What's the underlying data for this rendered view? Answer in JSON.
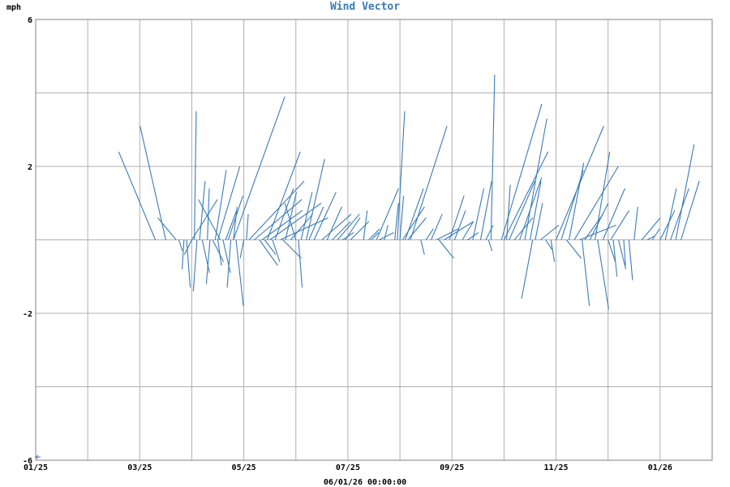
{
  "chart_data": {
    "type": "line",
    "title": "Wind Vector",
    "ylabel": "mph",
    "footer": "06/01/26 00:00:00",
    "ylim": [
      -6,
      6
    ],
    "y_ticks": [
      {
        "value": 6,
        "label": "6"
      },
      {
        "value": 2,
        "label": "2"
      },
      {
        "value": -2,
        "label": "-2"
      },
      {
        "value": -6,
        "label": "-6"
      }
    ],
    "x_range": [
      0,
      13.0
    ],
    "x_ticks": [
      {
        "value": 0,
        "label": "01/25"
      },
      {
        "value": 2,
        "label": "03/25"
      },
      {
        "value": 4,
        "label": "05/25"
      },
      {
        "value": 6,
        "label": "07/25"
      },
      {
        "value": 8,
        "label": "09/25"
      },
      {
        "value": 10,
        "label": "11/25"
      },
      {
        "value": 12,
        "label": "01/26"
      }
    ],
    "x_grid": [
      0,
      1,
      2,
      3,
      4,
      5,
      6,
      7,
      8,
      9,
      10,
      11,
      12,
      13
    ],
    "y_grid": [
      -6,
      -4,
      -2,
      0,
      2,
      4,
      6
    ],
    "series_color": "#3a7bb8",
    "grid_color": "#b0b0b0",
    "vectors": [
      {
        "x": 2.3,
        "u": -1.0,
        "v": 2.4
      },
      {
        "x": 2.5,
        "u": -0.7,
        "v": 3.1
      },
      {
        "x": 2.7,
        "u": -0.5,
        "v": 0.6
      },
      {
        "x": 2.75,
        "u": 0.1,
        "v": -0.3
      },
      {
        "x": 2.85,
        "u": -0.05,
        "v": -0.8
      },
      {
        "x": 2.9,
        "u": 0.1,
        "v": -1.3
      },
      {
        "x": 3.0,
        "u": -0.2,
        "v": -0.4
      },
      {
        "x": 3.0,
        "u": 0.7,
        "v": 1.1
      },
      {
        "x": 3.05,
        "u": 0.05,
        "v": 3.5
      },
      {
        "x": 3.1,
        "u": -0.1,
        "v": -1.4
      },
      {
        "x": 3.15,
        "u": 0.15,
        "v": 1.6
      },
      {
        "x": 3.2,
        "u": 0.2,
        "v": -0.9
      },
      {
        "x": 3.3,
        "u": 0.05,
        "v": 1.4
      },
      {
        "x": 3.35,
        "u": -0.1,
        "v": -1.2
      },
      {
        "x": 3.4,
        "u": 0.3,
        "v": -0.6
      },
      {
        "x": 3.45,
        "u": 0.3,
        "v": 1.9
      },
      {
        "x": 3.5,
        "u": 0.1,
        "v": -0.7
      },
      {
        "x": 3.5,
        "u": 0.6,
        "v": 2.0
      },
      {
        "x": 3.55,
        "u": -0.6,
        "v": 1.1
      },
      {
        "x": 3.6,
        "u": 0.2,
        "v": -0.9
      },
      {
        "x": 3.65,
        "u": 0.3,
        "v": 0.8
      },
      {
        "x": 3.7,
        "u": 0.4,
        "v": 1.2
      },
      {
        "x": 3.75,
        "u": -0.1,
        "v": -1.3
      },
      {
        "x": 3.8,
        "u": 0.1,
        "v": 0.9
      },
      {
        "x": 3.85,
        "u": 0.2,
        "v": -1.8
      },
      {
        "x": 3.8,
        "u": 1.4,
        "v": 3.9
      },
      {
        "x": 4.0,
        "u": -0.1,
        "v": -0.5
      },
      {
        "x": 4.05,
        "u": 0.05,
        "v": 0.7
      },
      {
        "x": 4.1,
        "u": 1.5,
        "v": 1.6
      },
      {
        "x": 4.2,
        "u": 1.3,
        "v": 1.1
      },
      {
        "x": 4.3,
        "u": 0.5,
        "v": -0.7
      },
      {
        "x": 4.35,
        "u": 1.1,
        "v": 0.8
      },
      {
        "x": 4.4,
        "u": 0.3,
        "v": -0.4
      },
      {
        "x": 4.45,
        "u": 0.9,
        "v": 2.4
      },
      {
        "x": 4.5,
        "u": 1.4,
        "v": 1.0
      },
      {
        "x": 4.55,
        "u": 0.2,
        "v": -0.6
      },
      {
        "x": 4.6,
        "u": 0.5,
        "v": 1.4
      },
      {
        "x": 4.7,
        "u": 1.3,
        "v": 0.6
      },
      {
        "x": 4.75,
        "u": 0.5,
        "v": -0.5
      },
      {
        "x": 4.8,
        "u": 0.3,
        "v": 1.3
      },
      {
        "x": 4.9,
        "u": 0.6,
        "v": 0.7
      },
      {
        "x": 5.0,
        "u": -0.3,
        "v": 1.0
      },
      {
        "x": 5.05,
        "u": 0.1,
        "v": -1.3
      },
      {
        "x": 5.1,
        "u": 0.3,
        "v": 1.3
      },
      {
        "x": 5.2,
        "u": 0.5,
        "v": 2.2
      },
      {
        "x": 5.25,
        "u": 0.4,
        "v": 0.9
      },
      {
        "x": 5.35,
        "u": 0.6,
        "v": 1.3
      },
      {
        "x": 5.5,
        "u": 0.8,
        "v": 0.7
      },
      {
        "x": 5.6,
        "u": 0.4,
        "v": 0.9
      },
      {
        "x": 5.7,
        "u": 0.5,
        "v": 0.5
      },
      {
        "x": 5.8,
        "u": 0.6,
        "v": 0.7
      },
      {
        "x": 5.9,
        "u": 0.3,
        "v": 0.2
      },
      {
        "x": 5.95,
        "u": 0.4,
        "v": 0.6
      },
      {
        "x": 6.05,
        "u": 0.5,
        "v": 0.5
      },
      {
        "x": 6.3,
        "u": 0.1,
        "v": 0.8
      },
      {
        "x": 6.4,
        "u": 0.3,
        "v": 0.3
      },
      {
        "x": 6.45,
        "u": 0.2,
        "v": 0.2
      },
      {
        "x": 6.55,
        "u": 0.6,
        "v": 1.4
      },
      {
        "x": 6.6,
        "u": 0.4,
        "v": 0.2
      },
      {
        "x": 6.7,
        "u": 0.1,
        "v": 0.4
      },
      {
        "x": 6.9,
        "u": 0.1,
        "v": 1.0
      },
      {
        "x": 6.95,
        "u": 0.2,
        "v": 3.5
      },
      {
        "x": 7.0,
        "u": 0.1,
        "v": 1.2
      },
      {
        "x": 7.05,
        "u": 0.6,
        "v": 0.9
      },
      {
        "x": 7.1,
        "u": 0.5,
        "v": 1.4
      },
      {
        "x": 7.15,
        "u": 0.5,
        "v": 0.6
      },
      {
        "x": 7.2,
        "u": 1.0,
        "v": 3.1
      },
      {
        "x": 7.4,
        "u": 0.1,
        "v": -0.4
      },
      {
        "x": 7.5,
        "u": 0.2,
        "v": 0.3
      },
      {
        "x": 7.6,
        "u": 0.3,
        "v": 0.7
      },
      {
        "x": 7.7,
        "u": 0.6,
        "v": 0.3
      },
      {
        "x": 7.75,
        "u": 0.4,
        "v": -0.5
      },
      {
        "x": 7.85,
        "u": 0.8,
        "v": 0.5
      },
      {
        "x": 7.95,
        "u": 0.4,
        "v": 1.2
      },
      {
        "x": 8.05,
        "u": 0.3,
        "v": 0.8
      },
      {
        "x": 8.2,
        "u": 0.3,
        "v": 0.5
      },
      {
        "x": 8.3,
        "u": 0.3,
        "v": 0.2
      },
      {
        "x": 8.4,
        "u": 0.3,
        "v": 1.4
      },
      {
        "x": 8.55,
        "u": 0.3,
        "v": 1.6
      },
      {
        "x": 8.65,
        "u": 0.2,
        "v": 0.4
      },
      {
        "x": 8.7,
        "u": 0.1,
        "v": -0.3
      },
      {
        "x": 8.75,
        "u": 0.1,
        "v": 4.5
      },
      {
        "x": 8.95,
        "u": 1.1,
        "v": 3.7
      },
      {
        "x": 9.0,
        "u": 1.2,
        "v": 2.4
      },
      {
        "x": 9.05,
        "u": 0.1,
        "v": 1.5
      },
      {
        "x": 9.1,
        "u": 0.7,
        "v": 1.6
      },
      {
        "x": 9.2,
        "u": 0.5,
        "v": 0.6
      },
      {
        "x": 9.3,
        "u": 0.6,
        "v": 1.7
      },
      {
        "x": 9.4,
        "u": 0.6,
        "v": 3.3
      },
      {
        "x": 9.5,
        "u": 0.3,
        "v": 1.6
      },
      {
        "x": 9.55,
        "u": -0.3,
        "v": -1.6
      },
      {
        "x": 9.6,
        "u": 0.2,
        "v": 1.0
      },
      {
        "x": 9.7,
        "u": 0.5,
        "v": 0.4
      },
      {
        "x": 9.8,
        "u": 0.2,
        "v": -0.3
      },
      {
        "x": 9.9,
        "u": 0.1,
        "v": -0.6
      },
      {
        "x": 10.0,
        "u": 1.3,
        "v": 3.1
      },
      {
        "x": 10.1,
        "u": 0.6,
        "v": 1.9
      },
      {
        "x": 10.2,
        "u": 0.4,
        "v": -0.5
      },
      {
        "x": 10.25,
        "u": 0.4,
        "v": 2.1
      },
      {
        "x": 10.35,
        "u": 1.2,
        "v": 2.0
      },
      {
        "x": 10.45,
        "u": 1.0,
        "v": 0.4
      },
      {
        "x": 10.5,
        "u": 0.2,
        "v": -1.8
      },
      {
        "x": 10.55,
        "u": 0.5,
        "v": 0.7
      },
      {
        "x": 10.65,
        "u": 0.5,
        "v": 1.0
      },
      {
        "x": 10.75,
        "u": 0.4,
        "v": 2.4
      },
      {
        "x": 10.8,
        "u": 0.3,
        "v": -1.9
      },
      {
        "x": 10.9,
        "u": 0.6,
        "v": 1.4
      },
      {
        "x": 11.0,
        "u": 0.2,
        "v": -0.6
      },
      {
        "x": 11.05,
        "u": 0.5,
        "v": 0.8
      },
      {
        "x": 11.1,
        "u": 0.1,
        "v": -1.0
      },
      {
        "x": 11.2,
        "u": 0.2,
        "v": -0.8
      },
      {
        "x": 11.3,
        "u": 0.05,
        "v": -0.7
      },
      {
        "x": 11.4,
        "u": 0.1,
        "v": -1.1
      },
      {
        "x": 11.5,
        "u": 0.1,
        "v": 0.9
      },
      {
        "x": 11.65,
        "u": 0.5,
        "v": 0.6
      },
      {
        "x": 11.75,
        "u": 0.2,
        "v": 0.1
      },
      {
        "x": 11.85,
        "u": 0.2,
        "v": 0.3
      },
      {
        "x": 12.0,
        "u": 0.4,
        "v": 0.8
      },
      {
        "x": 12.1,
        "u": 0.3,
        "v": 1.4
      },
      {
        "x": 12.2,
        "u": 0.5,
        "v": 1.4
      },
      {
        "x": 12.3,
        "u": 0.5,
        "v": 2.6
      },
      {
        "x": 12.4,
        "u": 0.5,
        "v": 1.6
      }
    ]
  }
}
